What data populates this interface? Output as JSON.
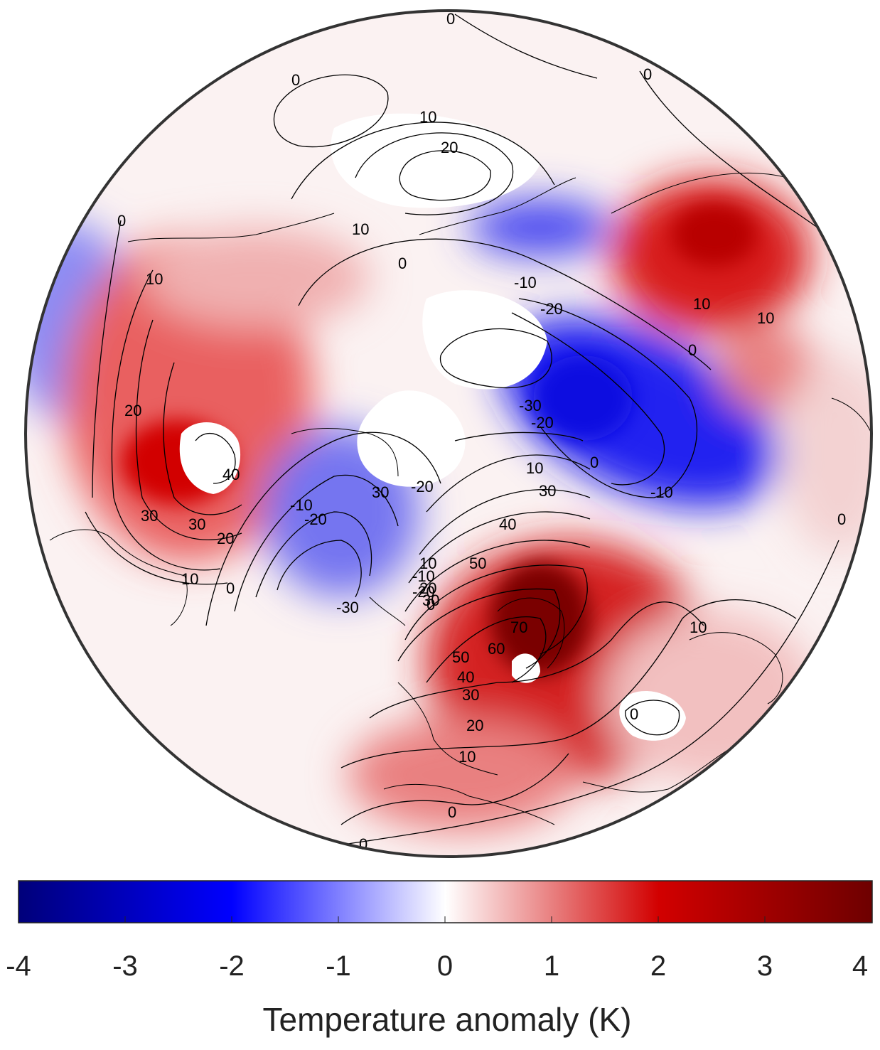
{
  "map": {
    "projection": "polar stereographic (Northern Hemisphere)",
    "shading": "temperature anomaly",
    "contours": "black line contours",
    "contour_labels": [
      "0",
      "0",
      "0",
      "10",
      "20",
      "10",
      "0",
      "-10",
      "-20",
      "-30",
      "-20",
      "0",
      "-10",
      "10",
      "10",
      "0",
      "0",
      "10",
      "20",
      "40",
      "30",
      "30",
      "20",
      "10",
      "0",
      "-10",
      "-20",
      "30",
      "-20",
      "-30",
      "10",
      "30",
      "40",
      "50",
      "60",
      "70",
      "50",
      "40",
      "30",
      "20",
      "10",
      "0",
      "0",
      "10",
      "0",
      "0",
      "-10",
      "-20",
      "0",
      "10",
      "20",
      "30"
    ]
  },
  "colorbar": {
    "title": "Temperature anomaly (K)",
    "ticks": [
      "-4",
      "-3",
      "-2",
      "-1",
      "0",
      "1",
      "2",
      "3",
      "4"
    ],
    "range": [
      -4,
      4
    ],
    "colors": {
      "min": "#00007a",
      "neg_mid": "#0000ff",
      "zero": "#ffffff",
      "pos_mid": "#d20000",
      "max": "#6e0000"
    }
  }
}
